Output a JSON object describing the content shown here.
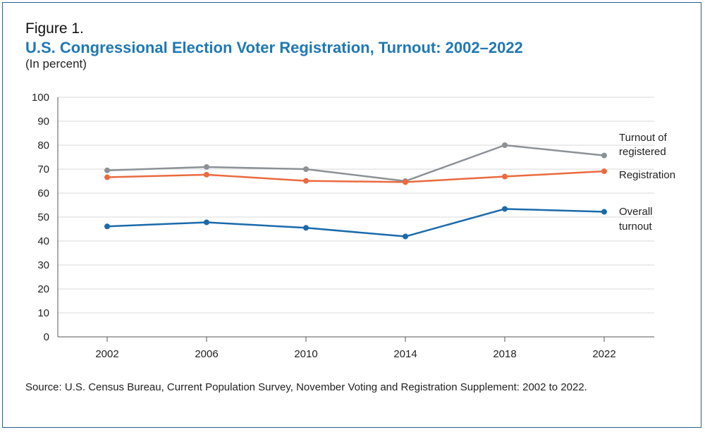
{
  "figure": {
    "label": "Figure 1.",
    "title": "U.S. Congressional Election Voter Registration, Turnout: 2002–2022",
    "subtitle": "(In percent)",
    "source": "Source: U.S. Census Bureau, Current Population Survey, November Voting and Registration Supplement: 2002 to 2022."
  },
  "chart_data": {
    "type": "line",
    "x": [
      "2002",
      "2006",
      "2010",
      "2014",
      "2018",
      "2022"
    ],
    "ylim": [
      0,
      100
    ],
    "yticks": [
      0,
      10,
      20,
      30,
      40,
      50,
      60,
      70,
      80,
      90,
      100
    ],
    "grid": true,
    "series": [
      {
        "name": "Turnout of registered",
        "label_lines": [
          "Turnout of",
          "registered"
        ],
        "color": "#8c9196",
        "values": [
          69.5,
          70.9,
          70.0,
          65.0,
          80.0,
          75.7
        ]
      },
      {
        "name": "Registration",
        "label_lines": [
          "Registration"
        ],
        "color": "#ea6a3f",
        "values": [
          66.6,
          67.7,
          65.1,
          64.6,
          66.9,
          69.1
        ]
      },
      {
        "name": "Overall turnout",
        "label_lines": [
          "Overall",
          "turnout"
        ],
        "color": "#1a6aab",
        "values": [
          46.1,
          47.8,
          45.5,
          41.9,
          53.4,
          52.2
        ]
      }
    ]
  }
}
